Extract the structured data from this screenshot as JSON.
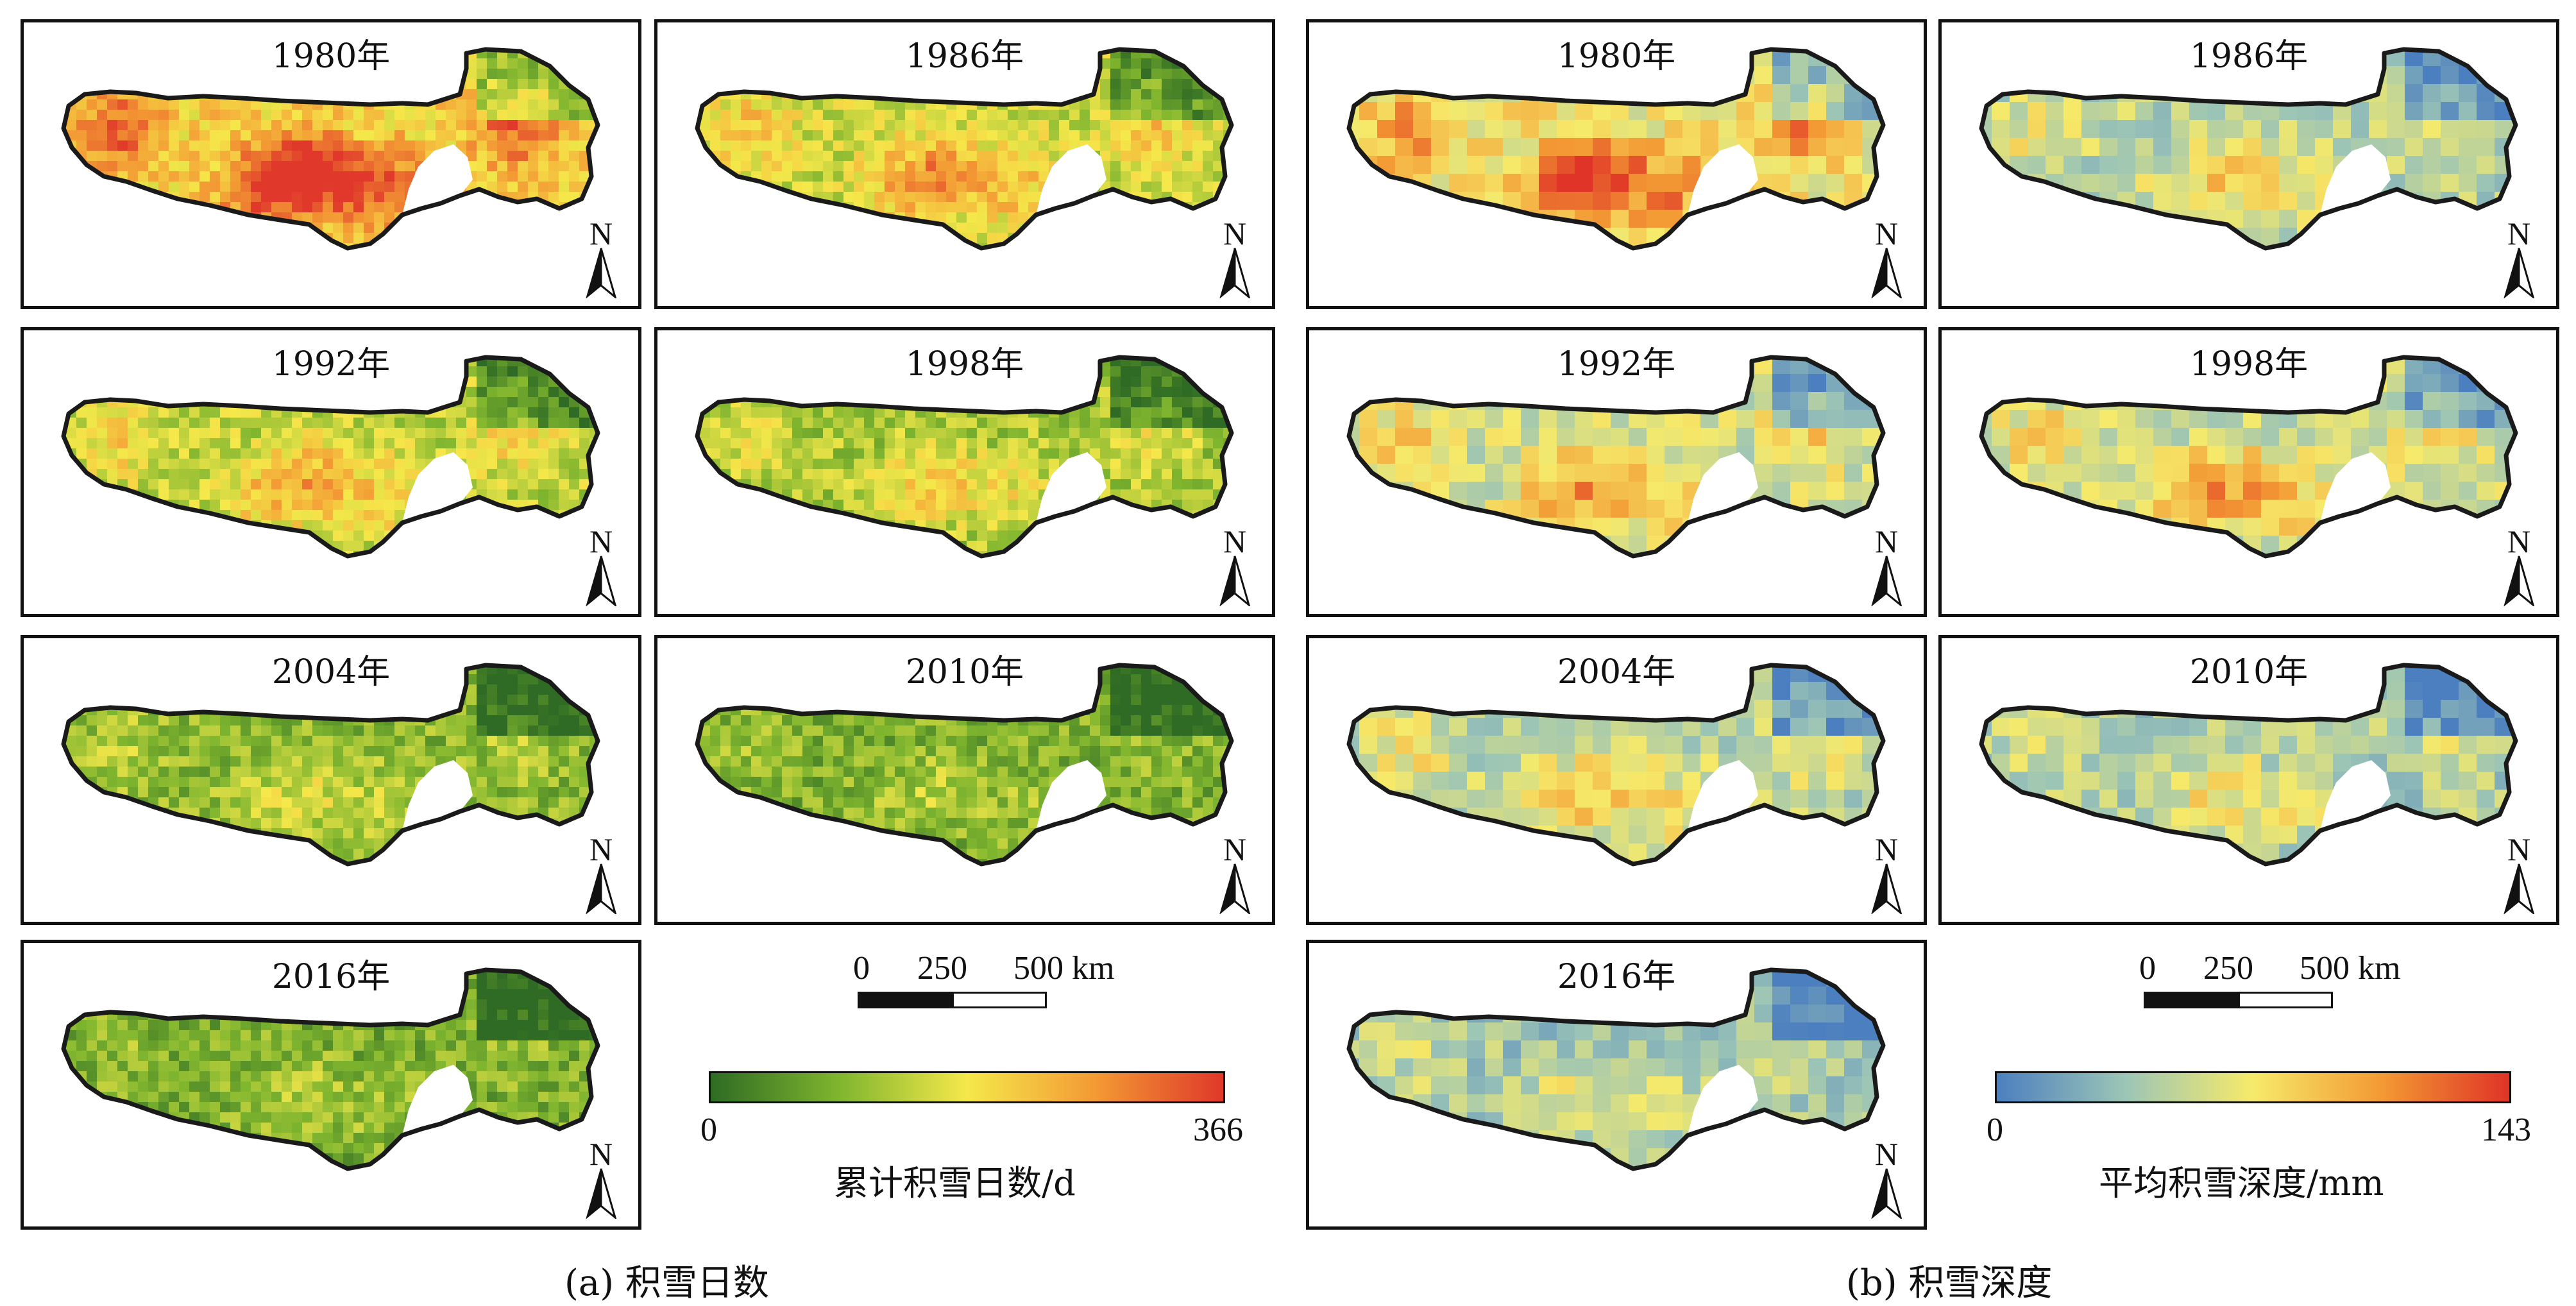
{
  "figure": {
    "group_a": {
      "caption": "(a) 积雪日数",
      "panels": [
        {
          "year": "1980年",
          "level": 0.68
        },
        {
          "year": "1986年",
          "level": 0.42
        },
        {
          "year": "1992年",
          "level": 0.38
        },
        {
          "year": "1998年",
          "level": 0.3
        },
        {
          "year": "2004年",
          "level": 0.2
        },
        {
          "year": "2010年",
          "level": 0.15
        },
        {
          "year": "2016年",
          "level": 0.14
        }
      ],
      "scale": {
        "ticks": [
          "0",
          "250",
          "500 km"
        ]
      },
      "legend": {
        "min": "0",
        "max": "366",
        "title": "累计积雪日数/d",
        "colors": [
          "#2f6b24",
          "#7fb52e",
          "#f5e84a",
          "#f39a34",
          "#e0382a"
        ]
      },
      "north_label": "N"
    },
    "group_b": {
      "caption": "(b) 积雪深度",
      "panels": [
        {
          "year": "1980年",
          "level": 0.55
        },
        {
          "year": "1986年",
          "level": 0.3
        },
        {
          "year": "1992年",
          "level": 0.4
        },
        {
          "year": "1998年",
          "level": 0.38
        },
        {
          "year": "2004年",
          "level": 0.32
        },
        {
          "year": "2010年",
          "level": 0.25
        },
        {
          "year": "2016年",
          "level": 0.22
        }
      ],
      "scale": {
        "ticks": [
          "0",
          "250",
          "500 km"
        ]
      },
      "legend": {
        "min": "0",
        "max": "143",
        "title": "平均积雪深度/mm",
        "colors": [
          "#4c7fbf",
          "#9cc5b6",
          "#f6ea6a",
          "#f39a34",
          "#df3427"
        ]
      },
      "north_label": "N"
    }
  }
}
